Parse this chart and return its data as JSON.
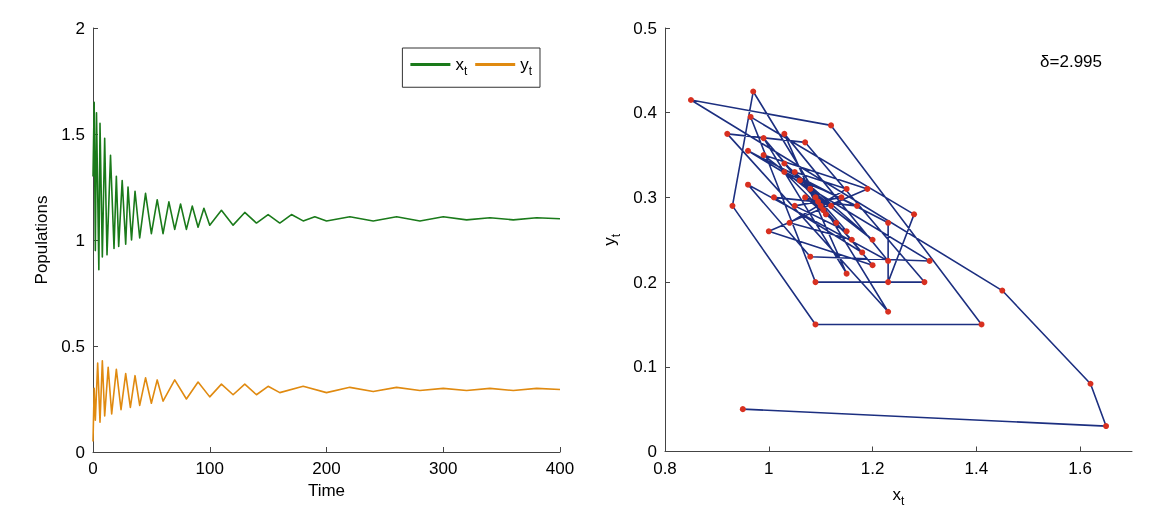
{
  "chart_data": [
    {
      "type": "line",
      "xlabel": "Time",
      "ylabel": "Populations",
      "xlim": [
        0,
        400
      ],
      "ylim": [
        0,
        2
      ],
      "xticks": [
        0,
        100,
        200,
        300,
        400
      ],
      "yticks": [
        0,
        0.5,
        1,
        1.5,
        2
      ],
      "grid": false,
      "legend": "top right",
      "series": [
        {
          "name": "x$_{t}$",
          "color": "#1a7a1a",
          "x": [
            0,
            1,
            2,
            3,
            5,
            6,
            8,
            10,
            12,
            15,
            18,
            20,
            22,
            25,
            28,
            30,
            33,
            36,
            40,
            45,
            50,
            55,
            60,
            65,
            70,
            75,
            80,
            85,
            90,
            95,
            100,
            110,
            120,
            130,
            140,
            150,
            160,
            170,
            180,
            190,
            200,
            220,
            240,
            260,
            280,
            300,
            320,
            340,
            360,
            380,
            400
          ],
          "values": [
            1.3,
            1.65,
            0.95,
            1.6,
            0.86,
            1.55,
            0.92,
            1.48,
            0.93,
            1.4,
            0.96,
            1.3,
            0.97,
            1.28,
            0.98,
            1.25,
            1.0,
            1.23,
            1.01,
            1.22,
            1.03,
            1.19,
            1.03,
            1.18,
            1.05,
            1.17,
            1.05,
            1.16,
            1.06,
            1.15,
            1.07,
            1.14,
            1.07,
            1.13,
            1.08,
            1.12,
            1.08,
            1.12,
            1.09,
            1.11,
            1.09,
            1.11,
            1.09,
            1.11,
            1.09,
            1.11,
            1.095,
            1.105,
            1.095,
            1.105,
            1.1
          ]
        },
        {
          "name": "y$_{t}$",
          "color": "#e08a10",
          "x": [
            0,
            1,
            2,
            4,
            6,
            8,
            10,
            13,
            16,
            20,
            24,
            28,
            32,
            36,
            40,
            45,
            50,
            55,
            60,
            70,
            80,
            90,
            100,
            110,
            120,
            130,
            140,
            150,
            160,
            180,
            200,
            220,
            240,
            260,
            280,
            300,
            320,
            340,
            360,
            380,
            400
          ],
          "values": [
            0.05,
            0.3,
            0.15,
            0.42,
            0.14,
            0.43,
            0.17,
            0.4,
            0.18,
            0.39,
            0.2,
            0.37,
            0.21,
            0.36,
            0.22,
            0.35,
            0.23,
            0.34,
            0.24,
            0.34,
            0.25,
            0.33,
            0.26,
            0.32,
            0.27,
            0.32,
            0.27,
            0.31,
            0.28,
            0.31,
            0.28,
            0.305,
            0.285,
            0.305,
            0.29,
            0.3,
            0.29,
            0.3,
            0.29,
            0.3,
            0.295
          ]
        }
      ]
    },
    {
      "type": "line",
      "xlabel": "x$_{t}$",
      "ylabel": "y$_{t}$",
      "xlim": [
        0.8,
        1.7
      ],
      "ylim": [
        0,
        0.5
      ],
      "xticks": [
        0.8,
        1,
        1.2,
        1.4,
        1.6
      ],
      "yticks": [
        0,
        0.1,
        0.2,
        0.3,
        0.4,
        0.5
      ],
      "grid": false,
      "marker": "circle",
      "annotations": [
        "δ=2.995"
      ],
      "series": [
        {
          "color": "#1c2f80",
          "colors": [
            "#d83020",
            "#d83020",
            "#d83020",
            "#d83020",
            "#d83020",
            "#d83020",
            "#d83020",
            "#d83020",
            "#d83020",
            "#d83020",
            "#d83020",
            "#d83020",
            "#d83020",
            "#d83020",
            "#d83020",
            "#d83020",
            "#d83020",
            "#d83020",
            "#d83020",
            "#d83020",
            "#d83020",
            "#d83020",
            "#d83020",
            "#d83020",
            "#d83020",
            "#d83020",
            "#d83020",
            "#d83020",
            "#d83020",
            "#d83020",
            "#d83020",
            "#d83020",
            "#d83020",
            "#d83020",
            "#d83020",
            "#d83020",
            "#d83020",
            "#d83020",
            "#d83020",
            "#d83020",
            "#d83020",
            "#d83020",
            "#d83020",
            "#d83020",
            "#d83020",
            "#d83020",
            "#d83020",
            "#d83020",
            "#d83020",
            "#d83020",
            "#d83020",
            "#d83020",
            "#d83020",
            "#d83020"
          ],
          "x": [
            0.95,
            1.65,
            1.62,
            1.45,
            0.85,
            1.12,
            1.41,
            1.09,
            0.93,
            0.97,
            1.23,
            0.92,
            1.07,
            1.3,
            1.09,
            0.965,
            1.28,
            1.23,
            1.23,
            0.96,
            1.31,
            1.08,
            0.96,
            1.23,
            1.03,
            1.15,
            0.99,
            1.2,
            1.0,
            1.19,
            0.99,
            1.2,
            1.03,
            1.18,
            1.01,
            1.17,
            1.03,
            1.16,
            1.04,
            1.15,
            1.05,
            1.15,
            1.05,
            1.14,
            1.06,
            1.13,
            1.07,
            1.12,
            1.08,
            1.11,
            1.09,
            1.105,
            1.095,
            1.1
          ],
          "values": [
            0.05,
            0.03,
            0.08,
            0.19,
            0.415,
            0.385,
            0.15,
            0.15,
            0.29,
            0.425,
            0.165,
            0.375,
            0.365,
            0.2,
            0.2,
            0.395,
            0.28,
            0.2,
            0.27,
            0.355,
            0.225,
            0.23,
            0.315,
            0.225,
            0.375,
            0.21,
            0.37,
            0.22,
            0.26,
            0.31,
            0.35,
            0.25,
            0.34,
            0.235,
            0.3,
            0.29,
            0.33,
            0.25,
            0.27,
            0.31,
            0.33,
            0.26,
            0.29,
            0.3,
            0.32,
            0.27,
            0.3,
            0.29,
            0.31,
            0.28,
            0.3,
            0.285,
            0.295,
            0.29
          ]
        }
      ]
    }
  ]
}
